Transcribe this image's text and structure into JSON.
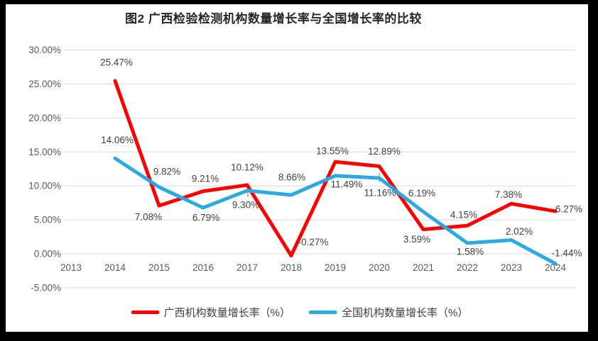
{
  "title": "图2 广西检验检测机构数量增长率与全国增长率的比较",
  "colors": {
    "guangxi_line": "#FF0000",
    "national_line": "#29ABE2",
    "gridline": "#D9D9D9",
    "axis_text": "#595959",
    "data_label_text": "#404040",
    "title_text": "#262626",
    "frame": "#000000",
    "background": "#FFFFFF",
    "leader_line": "#A6A6A6"
  },
  "chart_data": {
    "type": "line",
    "title": "图2 广西检验检测机构数量增长率与全国增长率的比较",
    "categories": [
      "2013",
      "2014",
      "2015",
      "2016",
      "2017",
      "2018",
      "2019",
      "2020",
      "2021",
      "2022",
      "2023",
      "2024"
    ],
    "series": [
      {
        "id": "guangxi",
        "name": "广西机构数量增长率（%）",
        "color": "#FF0000",
        "values": [
          null,
          25.47,
          7.08,
          9.21,
          10.12,
          -0.27,
          13.55,
          12.89,
          3.59,
          4.15,
          7.38,
          6.27
        ],
        "point_labels": [
          "",
          "25.47%",
          "7.08%",
          "9.21%",
          "10.12%",
          "-0.27%",
          "13.55%",
          "12.89%",
          "3.59%",
          "4.15%",
          "7.38%",
          "6.27%"
        ],
        "label_offsets": [
          [
            0,
            0
          ],
          [
            2,
            -26
          ],
          [
            -15,
            16
          ],
          [
            3,
            -18
          ],
          [
            0,
            -25
          ],
          [
            31,
            -19
          ],
          [
            -4,
            -15
          ],
          [
            7,
            -21
          ],
          [
            -9,
            14
          ],
          [
            -5,
            -15
          ],
          [
            -4,
            -13
          ],
          [
            19,
            -3
          ]
        ]
      },
      {
        "id": "national",
        "name": "全国机构数量增长率（%）",
        "color": "#29ABE2",
        "values": [
          null,
          14.06,
          9.82,
          6.79,
          9.3,
          8.66,
          11.49,
          11.16,
          6.19,
          1.58,
          2.02,
          -1.44
        ],
        "point_labels": [
          "",
          "14.06%",
          "9.82%",
          "6.79%",
          "9.30%",
          "8.66%",
          "11.49%",
          "11.16%",
          "6.19%",
          "1.58%",
          "2.02%",
          "-1.44%"
        ],
        "label_offsets": [
          [
            0,
            0
          ],
          [
            3,
            -26
          ],
          [
            11,
            -22
          ],
          [
            4,
            14
          ],
          [
            -2,
            20
          ],
          [
            1,
            -25
          ],
          [
            16,
            12
          ],
          [
            1,
            21
          ],
          [
            -2,
            -26
          ],
          [
            4,
            12
          ],
          [
            11,
            -12
          ],
          [
            16,
            -15
          ]
        ]
      }
    ],
    "y_axis": {
      "tick_labels": [
        "30.00%",
        "25.00%",
        "20.00%",
        "15.00%",
        "10.00%",
        "5.00%",
        "0.00%",
        "-5.00%"
      ],
      "tick_values": [
        30,
        25,
        20,
        15,
        10,
        5,
        0,
        -5
      ],
      "min": -5,
      "max": 30
    },
    "grid": true,
    "legend_position": "bottom"
  }
}
